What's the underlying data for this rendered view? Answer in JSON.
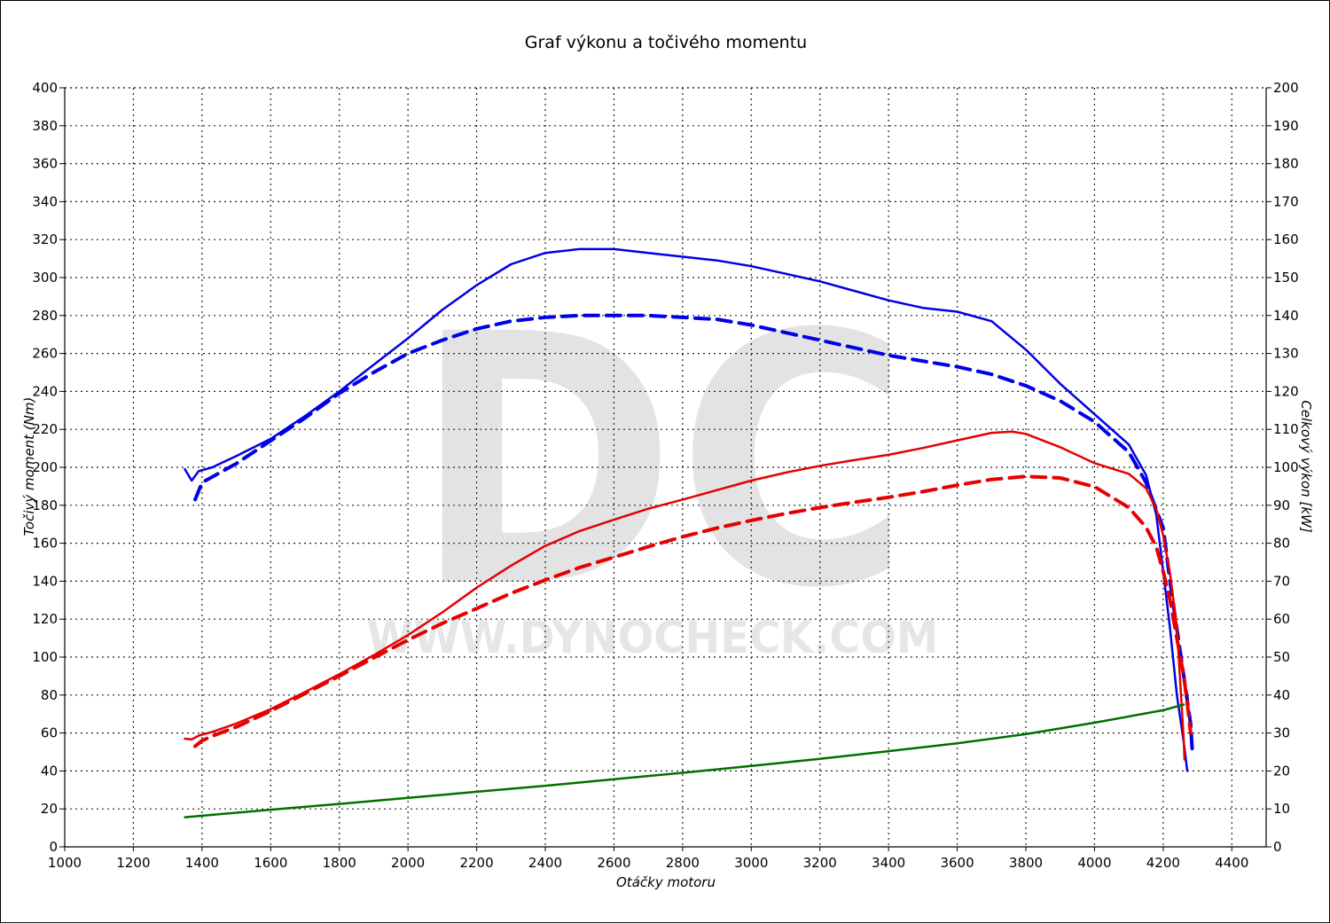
{
  "chart_data": {
    "type": "line",
    "title": "Graf výkonu a točivého momentu",
    "xlabel": "Otáčky motoru",
    "ylabel_left": "Točivý moment (Nm)",
    "ylabel_right": "Celkový výkon [kW]",
    "xlim": [
      1000,
      4500
    ],
    "ylim_left": [
      0,
      400
    ],
    "ylim_right": [
      0,
      200
    ],
    "x_ticks": [
      "1000",
      "1200",
      "1400",
      "1600",
      "1800",
      "2000",
      "2200",
      "2400",
      "2600",
      "2800",
      "3000",
      "3200",
      "3400",
      "3600",
      "3800",
      "4000",
      "4200",
      "4400"
    ],
    "y_left_ticks": [
      "0",
      "20",
      "40",
      "60",
      "80",
      "100",
      "120",
      "140",
      "160",
      "180",
      "200",
      "220",
      "240",
      "260",
      "280",
      "300",
      "320",
      "340",
      "360",
      "380",
      "400"
    ],
    "y_right_ticks": [
      "0",
      "10",
      "20",
      "30",
      "40",
      "50",
      "60",
      "70",
      "80",
      "90",
      "100",
      "110",
      "120",
      "130",
      "140",
      "150",
      "160",
      "170",
      "180",
      "190",
      "200"
    ],
    "grid": true,
    "watermark": {
      "letters": "DC",
      "url": "WWW.DYNOCHECK.COM"
    },
    "series": [
      {
        "id": "torque-tuned",
        "axis": "left",
        "color": "#0000e6",
        "dash": false,
        "x": [
          1350,
          1370,
          1390,
          1430,
          1500,
          1600,
          1700,
          1800,
          1900,
          2000,
          2100,
          2200,
          2300,
          2400,
          2500,
          2600,
          2700,
          2800,
          2900,
          3000,
          3100,
          3200,
          3300,
          3400,
          3500,
          3600,
          3700,
          3800,
          3900,
          4000,
          4100,
          4150,
          4180,
          4200,
          4220,
          4240,
          4260,
          4270
        ],
        "y": [
          199,
          193,
          198,
          200,
          206,
          215,
          227,
          240,
          254,
          268,
          283,
          296,
          307,
          313,
          315,
          315,
          313,
          311,
          309,
          306,
          302,
          298,
          293,
          288,
          284,
          282,
          277,
          262,
          244,
          228,
          212,
          196,
          175,
          145,
          115,
          80,
          55,
          40
        ]
      },
      {
        "id": "torque-stock",
        "axis": "left",
        "color": "#0000e6",
        "dash": true,
        "x": [
          1380,
          1400,
          1430,
          1500,
          1600,
          1700,
          1800,
          1900,
          2000,
          2100,
          2200,
          2300,
          2400,
          2500,
          2600,
          2700,
          2800,
          2900,
          3000,
          3100,
          3200,
          3300,
          3400,
          3500,
          3600,
          3700,
          3800,
          3900,
          4000,
          4100,
          4150,
          4200,
          4220,
          4240,
          4260,
          4280,
          4285
        ],
        "y": [
          183,
          192,
          195,
          202,
          214,
          226,
          239,
          250,
          260,
          267,
          273,
          277,
          279,
          280,
          280,
          280,
          279,
          278,
          275,
          271,
          267,
          263,
          259,
          256,
          253,
          249,
          243,
          235,
          224,
          208,
          192,
          168,
          140,
          115,
          90,
          65,
          50
        ]
      },
      {
        "id": "power-tuned",
        "axis": "right",
        "color": "#e60000",
        "dash": false,
        "x": [
          1350,
          1370,
          1390,
          1430,
          1500,
          1600,
          1700,
          1800,
          1900,
          2000,
          2100,
          2200,
          2300,
          2400,
          2500,
          2600,
          2700,
          2800,
          2900,
          3000,
          3100,
          3200,
          3300,
          3400,
          3500,
          3600,
          3700,
          3760,
          3800,
          3900,
          4000,
          4100,
          4150,
          4180,
          4200,
          4220,
          4240,
          4250,
          4260,
          4262
        ],
        "y": [
          28.5,
          28.3,
          29.3,
          30.3,
          32.5,
          36.3,
          40.8,
          45.5,
          50.5,
          55.8,
          61.8,
          68.3,
          74.1,
          79.3,
          83.2,
          86.2,
          89.1,
          91.5,
          94.0,
          96.5,
          98.6,
          100.4,
          101.9,
          103.3,
          105.1,
          107.1,
          109.1,
          109.4,
          108.8,
          105.3,
          101.1,
          98.3,
          94.5,
          89.0,
          82.0,
          72.0,
          58.0,
          43.0,
          28.0,
          23.0
        ]
      },
      {
        "id": "power-stock",
        "axis": "right",
        "color": "#e60000",
        "dash": true,
        "x": [
          1380,
          1400,
          1430,
          1500,
          1600,
          1700,
          1800,
          1900,
          2000,
          2100,
          2200,
          2300,
          2400,
          2500,
          2600,
          2700,
          2800,
          2900,
          3000,
          3100,
          3200,
          3300,
          3400,
          3500,
          3600,
          3700,
          3800,
          3900,
          4000,
          4100,
          4150,
          4180,
          4200,
          4220,
          4240,
          4260,
          4270,
          4280
        ],
        "y": [
          26.5,
          28.0,
          29.2,
          31.6,
          35.8,
          40.4,
          45.0,
          49.8,
          54.5,
          58.9,
          62.8,
          66.8,
          70.3,
          73.6,
          76.3,
          79.1,
          81.7,
          84.0,
          86.0,
          87.8,
          89.4,
          90.8,
          92.1,
          93.6,
          95.3,
          96.8,
          97.6,
          97.2,
          94.9,
          89.4,
          84.2,
          79.0,
          72.5,
          65.0,
          55.0,
          45.0,
          38.0,
          30.0
        ]
      },
      {
        "id": "power-loss",
        "axis": "right",
        "color": "#007000",
        "dash": false,
        "x": [
          1350,
          1600,
          1800,
          2000,
          2200,
          2400,
          2600,
          2800,
          3000,
          3200,
          3400,
          3600,
          3800,
          4000,
          4200,
          4260
        ],
        "y": [
          7.8,
          9.8,
          11.3,
          12.9,
          14.5,
          16.1,
          17.8,
          19.5,
          21.3,
          23.2,
          25.2,
          27.3,
          29.7,
          32.7,
          36.0,
          37.5
        ]
      }
    ]
  }
}
